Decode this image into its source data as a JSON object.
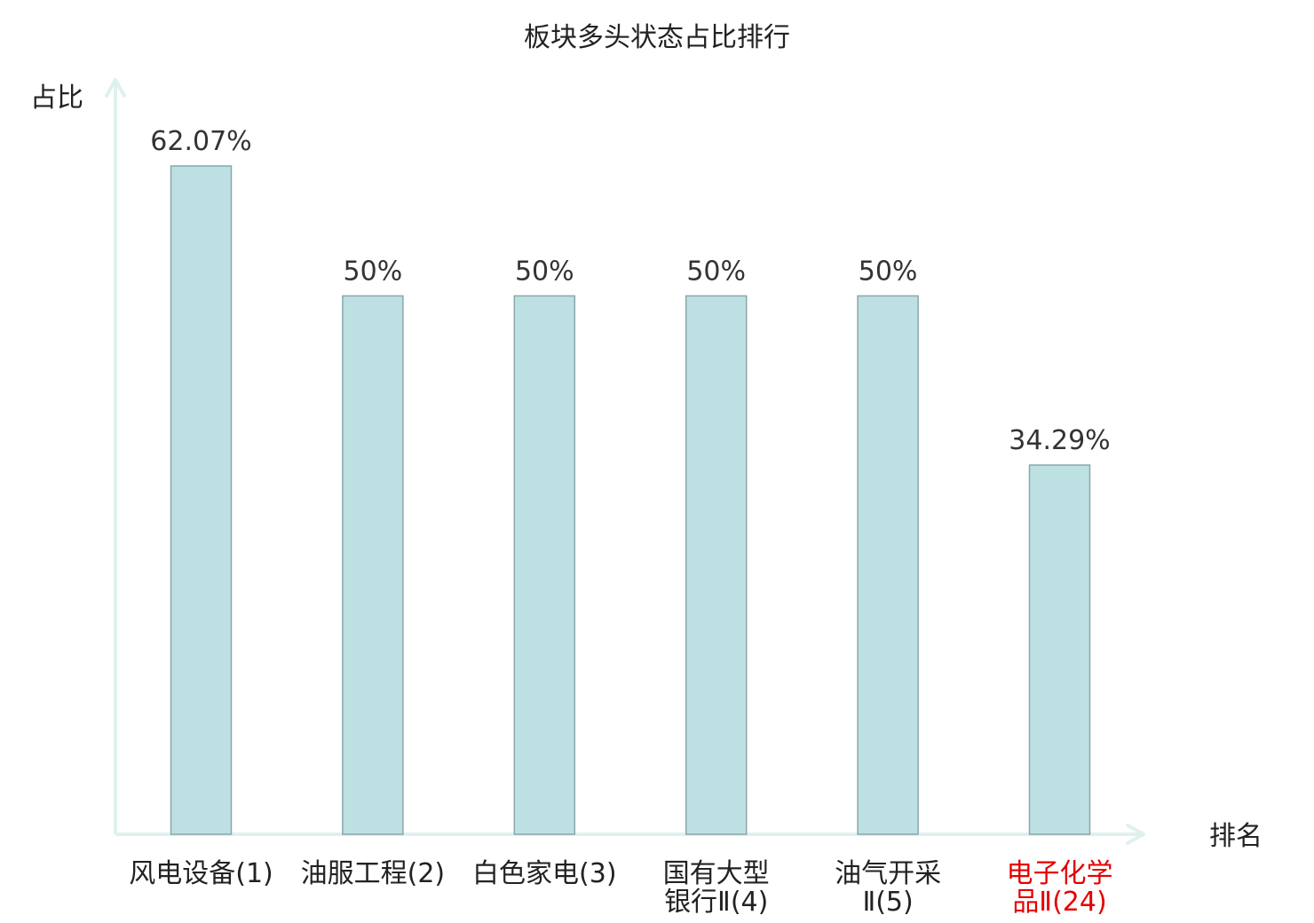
{
  "chart_data": {
    "type": "bar",
    "title": "板块多头状态占比排行",
    "ylabel": "占比",
    "xlabel": "排名",
    "ylim": [
      0,
      70
    ],
    "grid": false,
    "legend": "none",
    "categories": [
      [
        "风电设备(1)"
      ],
      [
        "油服工程(2)"
      ],
      [
        "白色家电(3)"
      ],
      [
        "国有大型",
        "银行Ⅱ(4)"
      ],
      [
        "油气开采",
        "Ⅱ(5)"
      ],
      [
        "电子化学",
        "品Ⅱ(24)"
      ]
    ],
    "values": [
      62.07,
      50,
      50,
      50,
      50,
      34.29
    ],
    "value_labels": [
      "62.07%",
      "50%",
      "50%",
      "50%",
      "50%",
      "34.29%"
    ],
    "highlight_index": 5
  },
  "colors": {
    "bar_fill": "#bde0e3",
    "bar_stroke": "#8aa7ab",
    "axis": "#dff1ef",
    "label_default": "#222222",
    "label_highlight": "#e60000"
  }
}
